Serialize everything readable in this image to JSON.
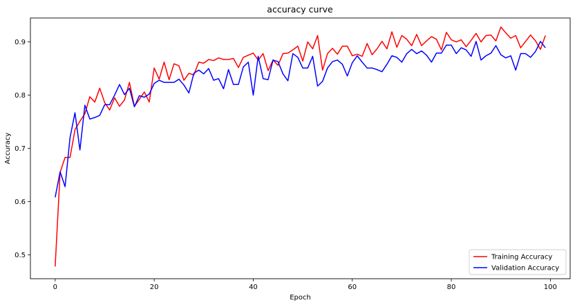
{
  "chart_data": {
    "type": "line",
    "title": "accuracy curve",
    "xlabel": "Epoch",
    "ylabel": "Accuracy",
    "xlim": [
      -5,
      104
    ],
    "ylim": [
      0.455,
      0.945
    ],
    "xticks": [
      0,
      20,
      40,
      60,
      80,
      100
    ],
    "yticks": [
      0.5,
      0.6,
      0.7,
      0.8,
      0.9
    ],
    "xtick_labels": [
      "0",
      "20",
      "40",
      "60",
      "80",
      "100"
    ],
    "ytick_labels": [
      "0.5",
      "0.6",
      "0.7",
      "0.8",
      "0.9"
    ],
    "grid": false,
    "legend_position": "lower-right",
    "series": [
      {
        "name": "Training Accuracy",
        "color": "#ff0000",
        "x": [
          0,
          1,
          2,
          3,
          4,
          5,
          6,
          7,
          8,
          9,
          10,
          11,
          12,
          13,
          14,
          15,
          16,
          17,
          18,
          19,
          20,
          21,
          22,
          23,
          24,
          25,
          26,
          27,
          28,
          29,
          30,
          31,
          32,
          33,
          34,
          35,
          36,
          37,
          38,
          39,
          40,
          41,
          42,
          43,
          44,
          45,
          46,
          47,
          48,
          49,
          50,
          51,
          52,
          53,
          54,
          55,
          56,
          57,
          58,
          59,
          60,
          61,
          62,
          63,
          64,
          65,
          66,
          67,
          68,
          69,
          70,
          71,
          72,
          73,
          74,
          75,
          76,
          77,
          78,
          79,
          80,
          81,
          82,
          83,
          84,
          85,
          86,
          87,
          88,
          89,
          90,
          91,
          92,
          93,
          94,
          95,
          96,
          97,
          98,
          99
        ],
        "values": [
          0.478,
          0.655,
          0.683,
          0.683,
          0.735,
          0.751,
          0.765,
          0.797,
          0.787,
          0.813,
          0.786,
          0.772,
          0.795,
          0.779,
          0.791,
          0.824,
          0.779,
          0.792,
          0.806,
          0.787,
          0.851,
          0.83,
          0.862,
          0.829,
          0.859,
          0.855,
          0.828,
          0.841,
          0.838,
          0.862,
          0.86,
          0.867,
          0.865,
          0.87,
          0.867,
          0.867,
          0.869,
          0.852,
          0.871,
          0.875,
          0.879,
          0.866,
          0.878,
          0.846,
          0.866,
          0.856,
          0.878,
          0.879,
          0.885,
          0.892,
          0.864,
          0.9,
          0.887,
          0.912,
          0.847,
          0.878,
          0.888,
          0.877,
          0.892,
          0.892,
          0.874,
          0.877,
          0.873,
          0.897,
          0.876,
          0.887,
          0.901,
          0.887,
          0.919,
          0.89,
          0.912,
          0.905,
          0.893,
          0.914,
          0.893,
          0.902,
          0.91,
          0.905,
          0.885,
          0.918,
          0.904,
          0.9,
          0.904,
          0.891,
          0.903,
          0.916,
          0.9,
          0.912,
          0.913,
          0.902,
          0.928,
          0.917,
          0.907,
          0.912,
          0.889,
          0.901,
          0.913,
          0.902,
          0.886,
          0.912
        ]
      },
      {
        "name": "Validation Accuracy",
        "color": "#0000ff",
        "x": [
          0,
          1,
          2,
          3,
          4,
          5,
          6,
          7,
          8,
          9,
          10,
          11,
          12,
          13,
          14,
          15,
          16,
          17,
          18,
          19,
          20,
          21,
          22,
          23,
          24,
          25,
          26,
          27,
          28,
          29,
          30,
          31,
          32,
          33,
          34,
          35,
          36,
          37,
          38,
          39,
          40,
          41,
          42,
          43,
          44,
          45,
          46,
          47,
          48,
          49,
          50,
          51,
          52,
          53,
          54,
          55,
          56,
          57,
          58,
          59,
          60,
          61,
          62,
          63,
          64,
          65,
          66,
          67,
          68,
          69,
          70,
          71,
          72,
          73,
          74,
          75,
          76,
          77,
          78,
          79,
          80,
          81,
          82,
          83,
          84,
          85,
          86,
          87,
          88,
          89,
          90,
          91,
          92,
          93,
          94,
          95,
          96,
          97,
          98,
          99
        ],
        "values": [
          0.608,
          0.656,
          0.628,
          0.72,
          0.767,
          0.697,
          0.781,
          0.755,
          0.758,
          0.762,
          0.782,
          0.782,
          0.8,
          0.82,
          0.801,
          0.813,
          0.778,
          0.799,
          0.796,
          0.802,
          0.822,
          0.828,
          0.824,
          0.824,
          0.824,
          0.83,
          0.819,
          0.804,
          0.841,
          0.847,
          0.84,
          0.85,
          0.828,
          0.831,
          0.812,
          0.848,
          0.82,
          0.82,
          0.853,
          0.862,
          0.8,
          0.873,
          0.831,
          0.829,
          0.866,
          0.863,
          0.84,
          0.827,
          0.878,
          0.871,
          0.851,
          0.851,
          0.873,
          0.817,
          0.826,
          0.851,
          0.863,
          0.866,
          0.858,
          0.836,
          0.861,
          0.874,
          0.862,
          0.851,
          0.851,
          0.848,
          0.844,
          0.858,
          0.874,
          0.871,
          0.862,
          0.878,
          0.886,
          0.878,
          0.883,
          0.875,
          0.862,
          0.879,
          0.879,
          0.894,
          0.894,
          0.878,
          0.889,
          0.885,
          0.873,
          0.901,
          0.866,
          0.874,
          0.879,
          0.893,
          0.876,
          0.87,
          0.874,
          0.847,
          0.878,
          0.878,
          0.871,
          0.882,
          0.901,
          0.889
        ]
      }
    ]
  }
}
